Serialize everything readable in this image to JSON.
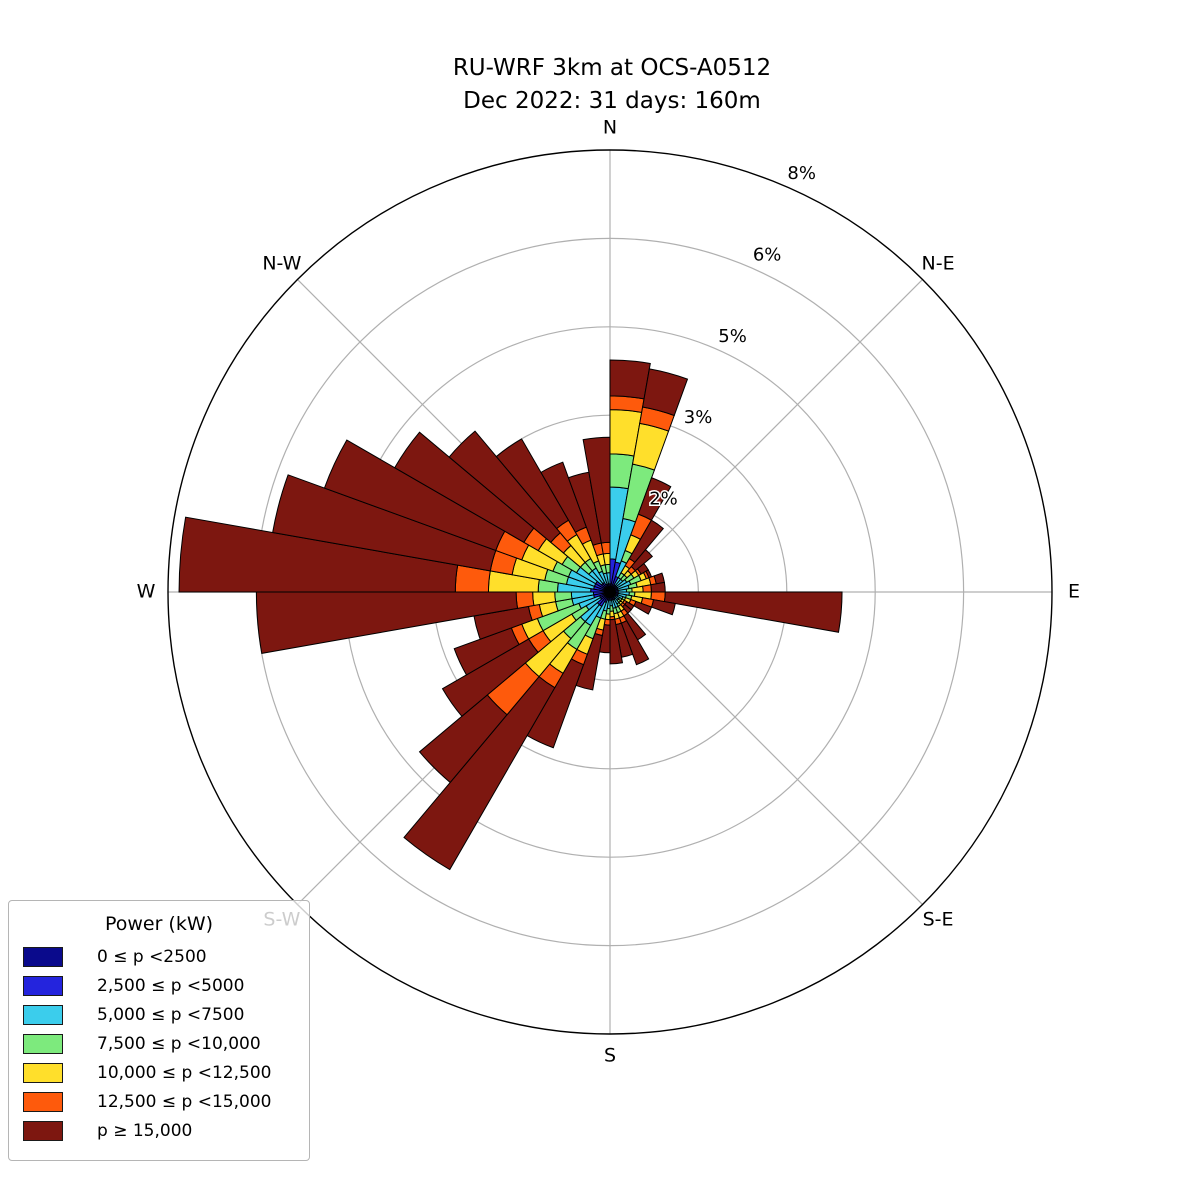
{
  "title": {
    "line1": "RU-WRF 3km at OCS-A0512",
    "line2": "Dec 2022: 31 days: 160m"
  },
  "chart_data": {
    "type": "windrose (polar stacked bar)",
    "units": "percent frequency of hours",
    "legend_title": "Power (kW)",
    "max_radius_percent": 8.0,
    "radial_ticks_percent": [
      1.6,
      3.2,
      4.8,
      6.4,
      8.0
    ],
    "radial_tick_labels": [
      "2%",
      "3%",
      "5%",
      "6%",
      "8%"
    ],
    "radial_tick_label_azimuth_deg": 23,
    "grid_color": "#b0b0b0",
    "outline_color": "#000000",
    "direction_bin_width_deg": 10,
    "direction_bin_start_deg": [
      0,
      10,
      20,
      30,
      40,
      50,
      60,
      70,
      80,
      90,
      100,
      110,
      120,
      130,
      140,
      150,
      160,
      170,
      180,
      190,
      200,
      210,
      220,
      230,
      240,
      250,
      260,
      270,
      280,
      290,
      300,
      310,
      320,
      330,
      340,
      350
    ],
    "spoke_labels": [
      {
        "label": "N",
        "deg": 0
      },
      {
        "label": "N-E",
        "deg": 45
      },
      {
        "label": "E",
        "deg": 90
      },
      {
        "label": "S-E",
        "deg": 135
      },
      {
        "label": "S",
        "deg": 180
      },
      {
        "label": "S-W",
        "deg": 225
      },
      {
        "label": "W",
        "deg": 270
      },
      {
        "label": "N-W",
        "deg": 315
      }
    ],
    "series": [
      {
        "name": "0 ≤ p <2500",
        "color": "#0a0a8c",
        "values": [
          0.15,
          0.1,
          0.1,
          0.05,
          0.05,
          0.05,
          0.05,
          0.05,
          0.05,
          0.05,
          0.05,
          0.05,
          0.05,
          0.05,
          0.05,
          0.05,
          0.05,
          0.05,
          0.05,
          0.05,
          0.05,
          0.1,
          0.1,
          0.05,
          0.05,
          0.1,
          0.1,
          0.1,
          0.1,
          0.1,
          0.1,
          0.05,
          0.05,
          0.05,
          0.05,
          0.05
        ]
      },
      {
        "name": "2,500 ≤ p <5000",
        "color": "#2424dd",
        "values": [
          0.45,
          0.45,
          0.2,
          0.1,
          0.1,
          0.1,
          0.1,
          0.1,
          0.1,
          0.1,
          0.1,
          0.1,
          0.05,
          0.05,
          0.1,
          0.1,
          0.1,
          0.1,
          0.1,
          0.1,
          0.15,
          0.2,
          0.2,
          0.15,
          0.15,
          0.2,
          0.2,
          0.25,
          0.2,
          0.2,
          0.2,
          0.15,
          0.15,
          0.1,
          0.1,
          0.1
        ]
      },
      {
        "name": "5,000 ≤ p <7500",
        "color": "#3bcdec",
        "values": [
          1.3,
          0.8,
          0.3,
          0.15,
          0.15,
          0.2,
          0.25,
          0.2,
          0.15,
          0.2,
          0.15,
          0.1,
          0.1,
          0.1,
          0.1,
          0.15,
          0.15,
          0.1,
          0.15,
          0.2,
          0.3,
          0.4,
          0.4,
          0.3,
          0.4,
          0.4,
          0.4,
          0.6,
          0.5,
          0.5,
          0.4,
          0.3,
          0.3,
          0.25,
          0.2,
          0.2
        ]
      },
      {
        "name": "7,500 ≤ p <10,000",
        "color": "#7dea7d",
        "values": [
          0.6,
          1.0,
          0.2,
          0.1,
          0.1,
          0.15,
          0.2,
          0.15,
          0.1,
          0.1,
          0.1,
          0.05,
          0.05,
          0.05,
          0.05,
          0.1,
          0.1,
          0.1,
          0.1,
          0.15,
          0.4,
          0.5,
          0.4,
          0.3,
          0.8,
          0.3,
          0.3,
          0.35,
          0.4,
          0.3,
          0.3,
          0.2,
          0.2,
          0.2,
          0.15,
          0.15
        ]
      },
      {
        "name": "10,000 ≤ p <12,500",
        "color": "#ffdf2b",
        "values": [
          0.8,
          0.75,
          0.3,
          0.15,
          0.1,
          0.1,
          0.1,
          0.25,
          0.2,
          0.3,
          0.2,
          0.1,
          0.05,
          0.05,
          0.1,
          0.1,
          0.1,
          0.1,
          0.1,
          0.2,
          0.3,
          0.5,
          0.9,
          0.6,
          0.3,
          0.3,
          0.4,
          0.9,
          0.6,
          0.6,
          0.5,
          0.4,
          0.5,
          0.4,
          0.2,
          0.2
        ]
      },
      {
        "name": "12,500 ≤ p <15,000",
        "color": "#fe5a0c",
        "values": [
          0.25,
          0.3,
          0.4,
          0.15,
          0.1,
          0.05,
          0.05,
          0.1,
          0.15,
          0.25,
          0.2,
          0.1,
          0.05,
          0.05,
          0.1,
          0.1,
          0.1,
          0.05,
          0.1,
          0.1,
          0.2,
          0.3,
          0.9,
          0.3,
          0.2,
          0.2,
          0.3,
          0.6,
          0.4,
          0.5,
          0.3,
          0.3,
          0.3,
          0.25,
          0.2,
          0.2
        ]
      },
      {
        "name": "p ≥ 15,000",
        "color": "#7d1710",
        "values": [
          0.65,
          0.7,
          0.7,
          0.8,
          0.4,
          0.15,
          0.05,
          0.15,
          0.25,
          3.2,
          0.4,
          0.3,
          0.15,
          0.15,
          0.5,
          0.8,
          0.6,
          0.8,
          0.5,
          1.0,
          1.6,
          3.8,
          1.6,
          1.8,
          1.1,
          1.0,
          4.7,
          5.0,
          4.0,
          3.3,
          2.7,
          2.4,
          1.7,
          1.25,
          1.3,
          1.9
        ]
      }
    ]
  }
}
